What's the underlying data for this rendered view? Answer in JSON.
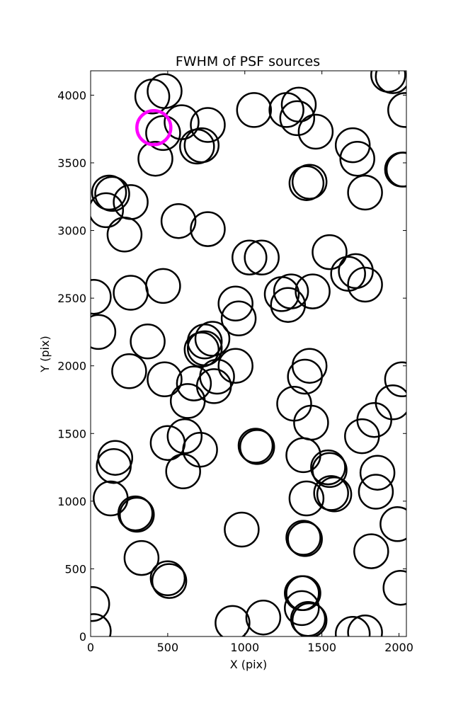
{
  "chart_data": {
    "type": "scatter",
    "title": "FWHM of PSF sources",
    "xlabel": "X (pix)",
    "ylabel": "Y (pix)",
    "xlim": [
      0,
      2048
    ],
    "ylim": [
      0,
      4180
    ],
    "xticks": [
      0,
      500,
      1000,
      1500,
      2000
    ],
    "yticks": [
      0,
      500,
      1000,
      1500,
      2000,
      2500,
      3000,
      3500,
      4000
    ],
    "grid": false,
    "marker": "open-circle",
    "marker_radius": 110,
    "highlight_color": "#ff00ff",
    "series": [
      {
        "color": "#000000",
        "points": [
          [
            400,
            3990
          ],
          [
            480,
            4030
          ],
          [
            590,
            3800
          ],
          [
            760,
            3780
          ],
          [
            1060,
            3890
          ],
          [
            1270,
            3890
          ],
          [
            1350,
            3930
          ],
          [
            1340,
            3830
          ],
          [
            1460,
            3730
          ],
          [
            1700,
            3630
          ],
          [
            1730,
            3530
          ],
          [
            1930,
            4150
          ],
          [
            1960,
            4140
          ],
          [
            2040,
            3890
          ],
          [
            470,
            3720
          ],
          [
            420,
            3530
          ],
          [
            690,
            3620
          ],
          [
            720,
            3630
          ],
          [
            2020,
            3450
          ],
          [
            2030,
            3450
          ],
          [
            1400,
            3350
          ],
          [
            1420,
            3360
          ],
          [
            1780,
            3280
          ],
          [
            120,
            3280
          ],
          [
            140,
            3270
          ],
          [
            100,
            3150
          ],
          [
            260,
            3210
          ],
          [
            220,
            2970
          ],
          [
            570,
            3070
          ],
          [
            760,
            3010
          ],
          [
            1030,
            2800
          ],
          [
            1110,
            2800
          ],
          [
            1550,
            2840
          ],
          [
            1670,
            2680
          ],
          [
            1720,
            2700
          ],
          [
            1780,
            2600
          ],
          [
            20,
            2510
          ],
          [
            260,
            2540
          ],
          [
            470,
            2590
          ],
          [
            940,
            2460
          ],
          [
            960,
            2350
          ],
          [
            1240,
            2530
          ],
          [
            1300,
            2550
          ],
          [
            1280,
            2450
          ],
          [
            1440,
            2550
          ],
          [
            50,
            2250
          ],
          [
            370,
            2180
          ],
          [
            740,
            2180
          ],
          [
            790,
            2200
          ],
          [
            720,
            2120
          ],
          [
            740,
            2130
          ],
          [
            250,
            1960
          ],
          [
            480,
            1900
          ],
          [
            670,
            1870
          ],
          [
            800,
            1850
          ],
          [
            820,
            1920
          ],
          [
            940,
            2000
          ],
          [
            1420,
            2000
          ],
          [
            1390,
            1920
          ],
          [
            1320,
            1720
          ],
          [
            1430,
            1580
          ],
          [
            2020,
            1900
          ],
          [
            1960,
            1730
          ],
          [
            630,
            1740
          ],
          [
            500,
            1430
          ],
          [
            610,
            1480
          ],
          [
            710,
            1380
          ],
          [
            1760,
            1480
          ],
          [
            1840,
            1600
          ],
          [
            150,
            1260
          ],
          [
            160,
            1320
          ],
          [
            600,
            1220
          ],
          [
            1070,
            1410
          ],
          [
            1080,
            1400
          ],
          [
            1380,
            1340
          ],
          [
            1540,
            1250
          ],
          [
            1550,
            1230
          ],
          [
            1860,
            1210
          ],
          [
            130,
            1020
          ],
          [
            290,
            910
          ],
          [
            300,
            900
          ],
          [
            1400,
            1020
          ],
          [
            1560,
            1060
          ],
          [
            1580,
            1050
          ],
          [
            1850,
            1070
          ],
          [
            1990,
            830
          ],
          [
            980,
            790
          ],
          [
            1380,
            730
          ],
          [
            1390,
            720
          ],
          [
            330,
            580
          ],
          [
            500,
            430
          ],
          [
            510,
            410
          ],
          [
            1820,
            630
          ],
          [
            10,
            240
          ],
          [
            20,
            40
          ],
          [
            920,
            100
          ],
          [
            1120,
            140
          ],
          [
            1370,
            320
          ],
          [
            1380,
            320
          ],
          [
            1370,
            210
          ],
          [
            1410,
            130
          ],
          [
            1420,
            120
          ],
          [
            1700,
            20
          ],
          [
            1780,
            30
          ],
          [
            2010,
            360
          ]
        ]
      },
      {
        "color": "#ff00ff",
        "points": [
          [
            410,
            3760
          ]
        ]
      }
    ]
  }
}
